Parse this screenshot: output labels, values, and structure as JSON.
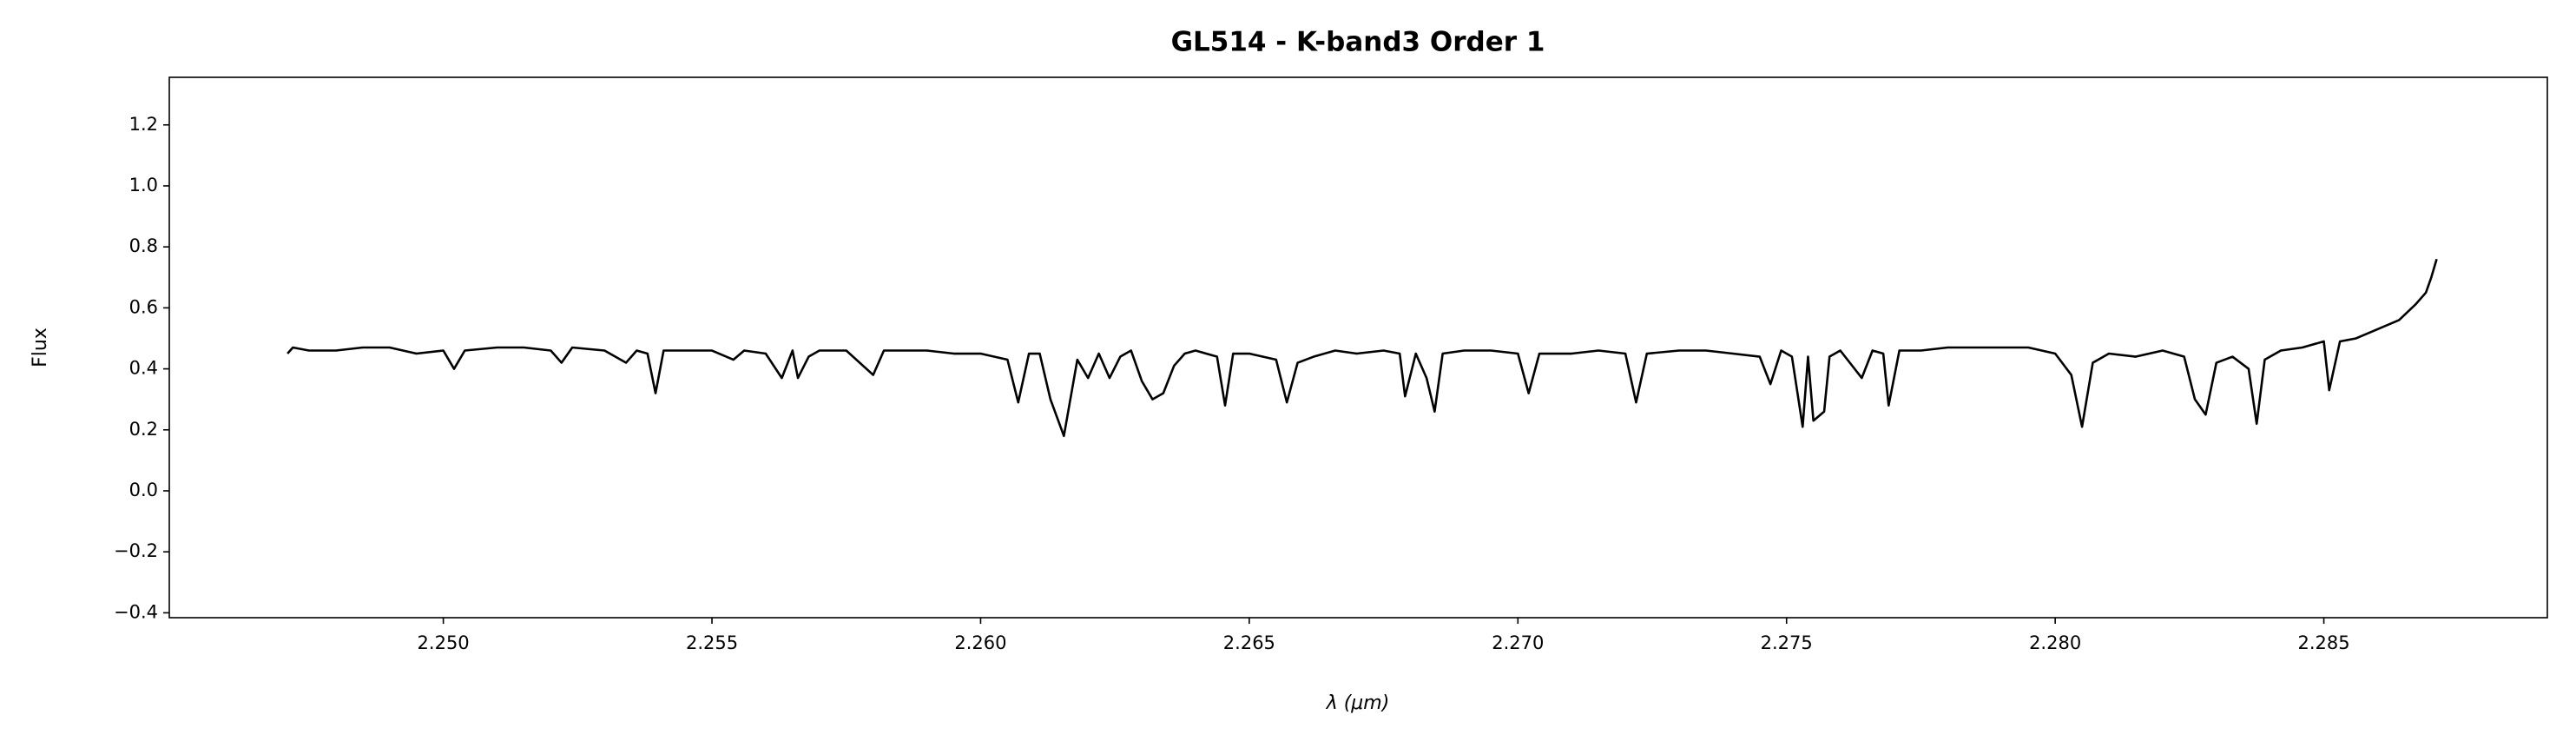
{
  "chart_data": {
    "type": "line",
    "title": "GL514 - K-band3 Order 1",
    "x_label": "λ (μm)",
    "y_label": "Flux",
    "xlim": [
      2.2449,
      2.28916
    ],
    "ylim": [
      -0.416,
      1.356
    ],
    "xticks": [
      {
        "value": 2.25,
        "label": "2.250"
      },
      2.255,
      {
        "value": 2.26,
        "label": "2.260"
      },
      2.265,
      {
        "value": 2.27,
        "label": "2.270"
      },
      2.275,
      {
        "value": 2.28,
        "label": "2.280"
      },
      2.285
    ],
    "yticks": [
      {
        "value": -0.4,
        "label": "−0.4"
      },
      {
        "value": -0.2,
        "label": "−0.2"
      },
      {
        "value": 0,
        "label": "0.0"
      },
      0.2,
      0.4,
      0.6,
      0.8,
      {
        "value": 1,
        "label": "1.0"
      },
      1.2
    ],
    "grid": false,
    "x": [
      2.2471,
      2.2472,
      2.2475,
      2.248,
      2.2485,
      2.249,
      2.2495,
      2.25,
      2.2502,
      2.2504,
      2.251,
      2.2515,
      2.252,
      2.2522,
      2.2524,
      2.253,
      2.2534,
      2.2536,
      2.2538,
      2.25395,
      2.2541,
      2.2545,
      2.255,
      2.2554,
      2.2556,
      2.256,
      2.2563,
      2.2565,
      2.2566,
      2.2568,
      2.257,
      2.2575,
      2.258,
      2.2582,
      2.259,
      2.2595,
      2.26,
      2.2605,
      2.2607,
      2.2609,
      2.2611,
      2.2613,
      2.26155,
      2.2618,
      2.262,
      2.2622,
      2.2624,
      2.2626,
      2.2628,
      2.263,
      2.2632,
      2.2634,
      2.2636,
      2.2638,
      2.264,
      2.2644,
      2.26455,
      2.2647,
      2.265,
      2.2655,
      2.2657,
      2.2659,
      2.2662,
      2.2666,
      2.267,
      2.2675,
      2.2678,
      2.2679,
      2.2681,
      2.2683,
      2.26845,
      2.2686,
      2.269,
      2.2695,
      2.27,
      2.2702,
      2.2704,
      2.271,
      2.2715,
      2.272,
      2.2722,
      2.2724,
      2.273,
      2.2735,
      2.274,
      2.2745,
      2.2747,
      2.2749,
      2.2751,
      2.2753,
      2.2754,
      2.2755,
      2.2757,
      2.2758,
      2.276,
      2.2764,
      2.2766,
      2.2768,
      2.2769,
      2.2771,
      2.2775,
      2.278,
      2.2785,
      2.279,
      2.2795,
      2.28,
      2.2803,
      2.2805,
      2.2807,
      2.281,
      2.2815,
      2.282,
      2.2824,
      2.2826,
      2.2828,
      2.283,
      2.2833,
      2.2836,
      2.28375,
      2.2839,
      2.2842,
      2.2846,
      2.285,
      2.2851,
      2.2853,
      2.2856,
      2.286,
      2.2864,
      2.2867,
      2.2869,
      2.287,
      2.2871
    ],
    "series": [
      {
        "color": "#000000",
        "values": [
          0.45,
          0.47,
          0.46,
          0.46,
          0.47,
          0.47,
          0.45,
          0.46,
          0.4,
          0.46,
          0.47,
          0.47,
          0.46,
          0.42,
          0.47,
          0.46,
          0.42,
          0.46,
          0.45,
          0.32,
          0.46,
          0.46,
          0.46,
          0.43,
          0.46,
          0.45,
          0.37,
          0.46,
          0.37,
          0.44,
          0.46,
          0.46,
          0.38,
          0.46,
          0.46,
          0.45,
          0.45,
          0.43,
          0.29,
          0.45,
          0.45,
          0.3,
          0.18,
          0.43,
          0.37,
          0.45,
          0.37,
          0.44,
          0.46,
          0.36,
          0.3,
          0.32,
          0.41,
          0.45,
          0.46,
          0.44,
          0.28,
          0.45,
          0.45,
          0.43,
          0.29,
          0.42,
          0.44,
          0.46,
          0.45,
          0.46,
          0.45,
          0.31,
          0.45,
          0.37,
          0.26,
          0.45,
          0.46,
          0.46,
          0.45,
          0.32,
          0.45,
          0.45,
          0.46,
          0.45,
          0.29,
          0.45,
          0.46,
          0.46,
          0.45,
          0.44,
          0.35,
          0.46,
          0.44,
          0.21,
          0.44,
          0.23,
          0.26,
          0.44,
          0.46,
          0.37,
          0.46,
          0.45,
          0.28,
          0.46,
          0.46,
          0.47,
          0.47,
          0.47,
          0.47,
          0.45,
          0.38,
          0.21,
          0.42,
          0.45,
          0.44,
          0.46,
          0.44,
          0.3,
          0.25,
          0.42,
          0.44,
          0.4,
          0.22,
          0.43,
          0.46,
          0.47,
          0.49,
          0.33,
          0.49,
          0.5,
          0.53,
          0.56,
          0.61,
          0.65,
          0.7,
          0.76
        ]
      }
    ]
  }
}
